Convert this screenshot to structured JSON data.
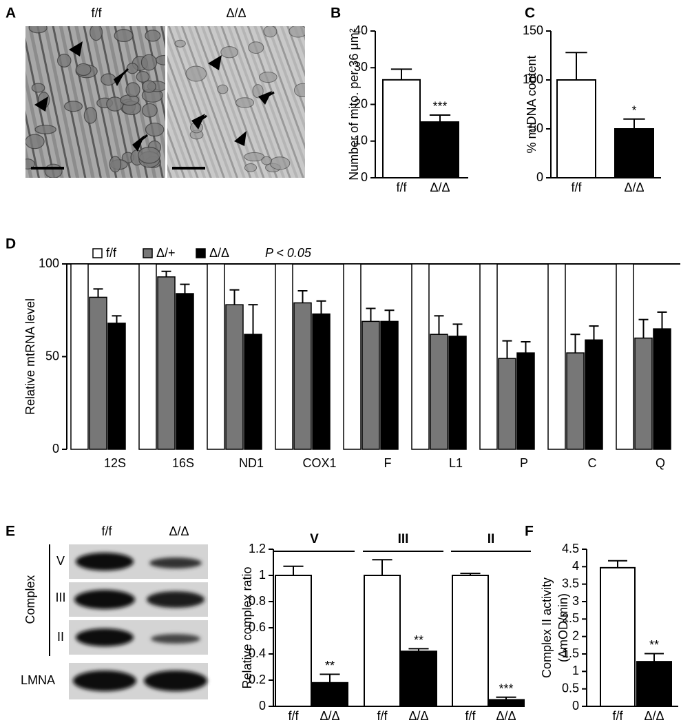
{
  "panel_labels": [
    "A",
    "B",
    "C",
    "D",
    "E",
    "F"
  ],
  "micrographs": {
    "labels": [
      "f/f",
      "Δ/Δ"
    ]
  },
  "blot": {
    "lanes": [
      "f/f",
      "Δ/Δ"
    ],
    "group": "Complex",
    "bands": [
      "V",
      "III",
      "II"
    ],
    "loading": "LMNA"
  },
  "chart_data": [
    {
      "type": "bar",
      "y_label": "Number of mito. per 36 μm²",
      "categories": [
        "f/f",
        "Δ/Δ"
      ],
      "values": [
        26.7,
        15.2
      ],
      "errors": [
        2.9,
        1.9
      ],
      "colors": [
        "#ffffff",
        "#000000"
      ],
      "significance": [
        null,
        "***"
      ],
      "ylim": [
        0,
        40
      ],
      "yticks": [
        0,
        10,
        20,
        30,
        40
      ]
    },
    {
      "type": "bar",
      "y_label": "% mtDNA content",
      "categories": [
        "f/f",
        "Δ/Δ"
      ],
      "values": [
        100,
        50
      ],
      "errors": [
        28,
        10
      ],
      "colors": [
        "#ffffff",
        "#000000"
      ],
      "significance": [
        null,
        "*"
      ],
      "ylim": [
        0,
        150
      ],
      "yticks": [
        0,
        50,
        100,
        150
      ]
    },
    {
      "type": "grouped-bar",
      "y_label": "Relative mtRNA level",
      "note": "P < 0.05",
      "categories": [
        "12S",
        "16S",
        "ND1",
        "COX1",
        "F",
        "L1",
        "P",
        "C",
        "Q"
      ],
      "series": [
        {
          "name": "f/f",
          "color": "#ffffff",
          "values": [
            100,
            100,
            100,
            100,
            100,
            100,
            100,
            100,
            100
          ]
        },
        {
          "name": "Δ/+",
          "color": "#777777",
          "values": [
            82,
            93,
            78,
            79,
            69,
            62,
            49,
            52,
            60
          ],
          "errors": [
            4.5,
            3,
            8,
            6.5,
            7,
            10,
            9.5,
            10,
            10
          ]
        },
        {
          "name": "Δ/Δ",
          "color": "#000000",
          "values": [
            68,
            84,
            62,
            73,
            69,
            61,
            52,
            59,
            65
          ],
          "errors": [
            4,
            5,
            16,
            7,
            6,
            6.5,
            6,
            7.5,
            9
          ]
        }
      ],
      "ylim": [
        0,
        100
      ],
      "yticks": [
        0,
        50,
        100
      ]
    },
    {
      "type": "bar",
      "y_label": "Relative complex ratio",
      "groups": [
        "V",
        "III",
        "II"
      ],
      "categories": [
        "f/f",
        "Δ/Δ",
        "f/f",
        "Δ/Δ",
        "f/f",
        "Δ/Δ"
      ],
      "values": [
        1,
        0.18,
        1,
        0.42,
        1,
        0.05
      ],
      "errors": [
        0.07,
        0.065,
        0.12,
        0.02,
        0.015,
        0.02
      ],
      "colors": [
        "#ffffff",
        "#000000",
        "#ffffff",
        "#000000",
        "#ffffff",
        "#000000"
      ],
      "significance": [
        null,
        "**",
        null,
        "**",
        null,
        "***"
      ],
      "ylim": [
        0,
        1.2
      ],
      "yticks": [
        0,
        0.2,
        0.4,
        0.6,
        0.8,
        1,
        1.2
      ]
    },
    {
      "type": "bar",
      "y_label": [
        "Complex II activity",
        "(ΔmOD/min)"
      ],
      "categories": [
        "f/f",
        "Δ/Δ"
      ],
      "values": [
        3.97,
        1.28
      ],
      "errors": [
        0.2,
        0.23
      ],
      "colors": [
        "#ffffff",
        "#000000"
      ],
      "significance": [
        null,
        "**"
      ],
      "ylim": [
        0,
        4.5
      ],
      "yticks": [
        0,
        0.5,
        1,
        1.5,
        2,
        2.5,
        3,
        3.5,
        4,
        4.5
      ]
    }
  ]
}
